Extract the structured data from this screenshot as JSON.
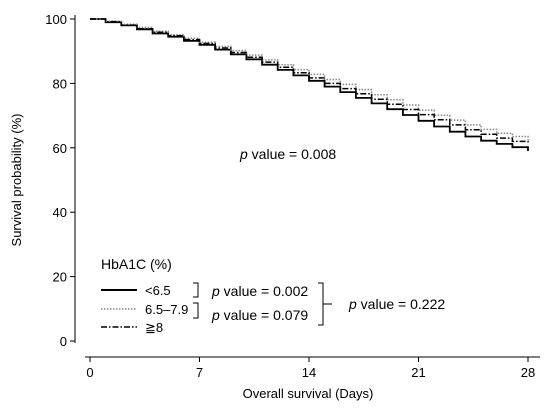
{
  "chart_data": {
    "type": "line",
    "subtype": "kaplan-meier",
    "xlabel": "Overall survival (Days)",
    "ylabel": "Survival probability (%)",
    "xlim": [
      0,
      28
    ],
    "ylim": [
      0,
      100
    ],
    "x_ticks": [
      0,
      7,
      14,
      21,
      28
    ],
    "y_ticks": [
      0,
      20,
      40,
      60,
      80,
      100
    ],
    "grid": false,
    "legend": {
      "title": "HbA1C (%)",
      "placement": "bottom-left"
    },
    "series": [
      {
        "name": "<6.5",
        "style": "solid",
        "color": "#000000",
        "points": [
          [
            0,
            100
          ],
          [
            1,
            99
          ],
          [
            2,
            98
          ],
          [
            3,
            96.8
          ],
          [
            4,
            95.5
          ],
          [
            5,
            94.5
          ],
          [
            6,
            93.2
          ],
          [
            7,
            92
          ],
          [
            8,
            90.5
          ],
          [
            9,
            89
          ],
          [
            10,
            87.5
          ],
          [
            11,
            85.8
          ],
          [
            12,
            84.2
          ],
          [
            13,
            82.5
          ],
          [
            14,
            80.8
          ],
          [
            15,
            79
          ],
          [
            16,
            77.3
          ],
          [
            17,
            75.5
          ],
          [
            18,
            73.8
          ],
          [
            19,
            72
          ],
          [
            20,
            70.2
          ],
          [
            21,
            68.4
          ],
          [
            22,
            66.6
          ],
          [
            23,
            65
          ],
          [
            24,
            63.5
          ],
          [
            25,
            62.2
          ],
          [
            26,
            61.2
          ],
          [
            27,
            60.2
          ],
          [
            28,
            59
          ]
        ]
      },
      {
        "name": "6.5–7.9",
        "style": "dotted",
        "color": "#888888",
        "points": [
          [
            0,
            100
          ],
          [
            1,
            99.3
          ],
          [
            2,
            98.4
          ],
          [
            3,
            97.4
          ],
          [
            4,
            96.2
          ],
          [
            5,
            95.1
          ],
          [
            6,
            94
          ],
          [
            7,
            92.8
          ],
          [
            8,
            91.5
          ],
          [
            9,
            90.2
          ],
          [
            10,
            88.8
          ],
          [
            11,
            87.3
          ],
          [
            12,
            85.8
          ],
          [
            13,
            84.3
          ],
          [
            14,
            82.8
          ],
          [
            15,
            81.2
          ],
          [
            16,
            79.7
          ],
          [
            17,
            78.1
          ],
          [
            18,
            76.5
          ],
          [
            19,
            74.9
          ],
          [
            20,
            73.3
          ],
          [
            21,
            71.7
          ],
          [
            22,
            70.1
          ],
          [
            23,
            68.6
          ],
          [
            24,
            67.1
          ],
          [
            25,
            65.7
          ],
          [
            26,
            64.5
          ],
          [
            27,
            63.5
          ],
          [
            28,
            62.5
          ]
        ]
      },
      {
        "name": "≧8",
        "style": "dashdot",
        "color": "#000000",
        "points": [
          [
            0,
            100
          ],
          [
            1,
            99.2
          ],
          [
            2,
            98.1
          ],
          [
            3,
            97
          ],
          [
            4,
            95.9
          ],
          [
            5,
            94.8
          ],
          [
            6,
            93.6
          ],
          [
            7,
            92.4
          ],
          [
            8,
            91
          ],
          [
            9,
            89.6
          ],
          [
            10,
            88.1
          ],
          [
            11,
            86.6
          ],
          [
            12,
            85
          ],
          [
            13,
            83.3
          ],
          [
            14,
            81.7
          ],
          [
            15,
            80
          ],
          [
            16,
            78.4
          ],
          [
            17,
            76.8
          ],
          [
            18,
            75.1
          ],
          [
            19,
            73.5
          ],
          [
            20,
            71.9
          ],
          [
            21,
            70.3
          ],
          [
            22,
            68.7
          ],
          [
            23,
            67.1
          ],
          [
            24,
            65.6
          ],
          [
            25,
            64.2
          ],
          [
            26,
            63
          ],
          [
            27,
            62
          ],
          [
            28,
            61
          ]
        ]
      }
    ],
    "annotations": {
      "overall": {
        "italic": "p",
        "text": " value = 0.008"
      },
      "pair1": {
        "italic": "p",
        "text": " value = 0.002"
      },
      "pair2": {
        "italic": "p",
        "text": " value = 0.079"
      },
      "pair3": {
        "italic": "p",
        "text": " value = 0.222"
      }
    }
  }
}
